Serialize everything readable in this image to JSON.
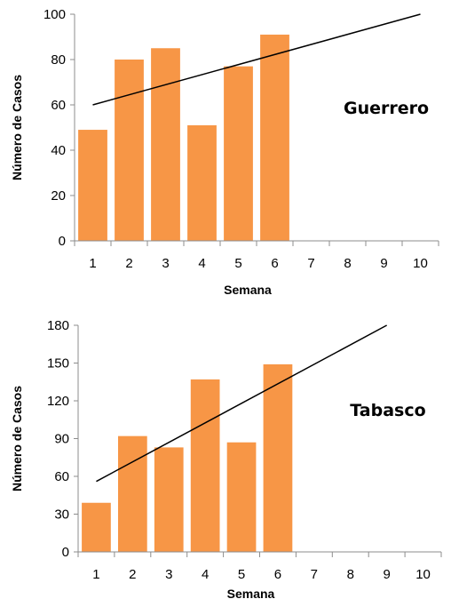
{
  "chart_data": [
    {
      "type": "bar",
      "panel_label": "Guerrero",
      "xlabel": "Semana",
      "ylabel": "Número de Casos",
      "categories": [
        "1",
        "2",
        "3",
        "4",
        "5",
        "6",
        "7",
        "8",
        "9",
        "10"
      ],
      "values": [
        49,
        80,
        85,
        51,
        77,
        91,
        null,
        null,
        null,
        null
      ],
      "ylim": [
        0,
        100
      ],
      "yticks": [
        0,
        20,
        40,
        60,
        80,
        100
      ],
      "bar_color": "#F79646",
      "trendline": {
        "type": "linear",
        "x_start": 1,
        "y_start": 60,
        "x_end": 10,
        "y_end": 100
      },
      "grid": false
    },
    {
      "type": "bar",
      "panel_label": "Tabasco",
      "xlabel": "Semana",
      "ylabel": "Número de Casos",
      "categories": [
        "1",
        "2",
        "3",
        "4",
        "5",
        "6",
        "7",
        "8",
        "9",
        "10"
      ],
      "values": [
        39,
        92,
        83,
        137,
        87,
        149,
        null,
        null,
        null,
        null
      ],
      "ylim": [
        0,
        180
      ],
      "yticks": [
        0,
        30,
        60,
        90,
        120,
        150,
        180
      ],
      "bar_color": "#F79646",
      "trendline": {
        "type": "linear",
        "x_start": 1,
        "y_start": 56,
        "x_end": 9,
        "y_end": 180
      },
      "grid": false
    }
  ]
}
